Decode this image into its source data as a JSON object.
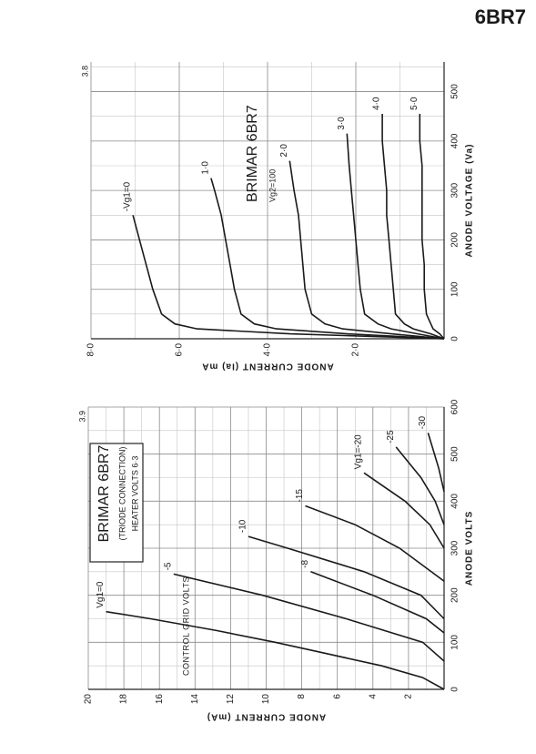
{
  "page_label": "6BR7",
  "chart_data": [
    {
      "type": "line",
      "title": "BRIMAR 6BR7",
      "subtitle": "Vg2=100",
      "page_number": "3.8",
      "x_label": "ANODE VOLTAGE (Va)",
      "y_label": "ANODE CURRENT (Ia) mA",
      "xlim": [
        0,
        560
      ],
      "ylim": [
        0,
        8
      ],
      "xticks": [
        0,
        100,
        200,
        300,
        400,
        500
      ],
      "yticks": [
        {
          "value": 2,
          "label": "2·0"
        },
        {
          "value": 4,
          "label": "4·0"
        },
        {
          "value": 6,
          "label": "6·0"
        },
        {
          "value": 8,
          "label": "8·0"
        }
      ],
      "grid": true,
      "color": "#1a1a1a",
      "series": [
        {
          "name": "-Vg1=0",
          "x": [
            0,
            10,
            20,
            30,
            50,
            100,
            150,
            200,
            250
          ],
          "values": [
            0,
            3.5,
            5.6,
            6.1,
            6.4,
            6.6,
            6.75,
            6.9,
            7.05
          ]
        },
        {
          "name": "1·0",
          "x": [
            0,
            10,
            20,
            30,
            50,
            100,
            150,
            200,
            250,
            300,
            325
          ],
          "values": [
            0,
            2.2,
            3.8,
            4.3,
            4.6,
            4.75,
            4.85,
            4.95,
            5.05,
            5.2,
            5.28
          ]
        },
        {
          "name": "2·0",
          "x": [
            0,
            10,
            20,
            30,
            50,
            100,
            150,
            200,
            250,
            300,
            360
          ],
          "values": [
            0,
            1.2,
            2.3,
            2.7,
            3.0,
            3.15,
            3.2,
            3.25,
            3.3,
            3.4,
            3.5
          ]
        },
        {
          "name": "3·0",
          "x": [
            0,
            10,
            20,
            30,
            50,
            100,
            150,
            200,
            250,
            300,
            350,
            415
          ],
          "values": [
            0,
            0.6,
            1.2,
            1.5,
            1.8,
            1.9,
            1.95,
            2.0,
            2.05,
            2.1,
            2.15,
            2.2
          ]
        },
        {
          "name": "4·0",
          "x": [
            0,
            10,
            20,
            30,
            50,
            100,
            150,
            200,
            250,
            300,
            350,
            400,
            455
          ],
          "values": [
            0,
            0.3,
            0.7,
            0.9,
            1.1,
            1.15,
            1.2,
            1.25,
            1.3,
            1.3,
            1.35,
            1.4,
            1.4
          ]
        },
        {
          "name": "5·0",
          "x": [
            0,
            10,
            20,
            30,
            50,
            100,
            150,
            200,
            250,
            300,
            350,
            400,
            455
          ],
          "values": [
            0,
            0.1,
            0.25,
            0.3,
            0.4,
            0.45,
            0.45,
            0.5,
            0.5,
            0.5,
            0.5,
            0.55,
            0.55
          ]
        }
      ]
    },
    {
      "type": "line",
      "title": "BRIMAR 6BR7",
      "subtitle": "(TRIODE CONNECTION)",
      "note": "HEATER VOLTS 6·3",
      "page_number": "3.9",
      "annotation": "CONTROL GRID VOLTS",
      "x_label": "ANODE VOLTS",
      "y_label": "ANODE CURRENT (mA)",
      "xlim": [
        0,
        600
      ],
      "ylim": [
        0,
        20
      ],
      "xticks": [
        0,
        100,
        200,
        300,
        400,
        500,
        600
      ],
      "yticks": [
        2,
        4,
        6,
        8,
        10,
        12,
        14,
        16,
        18,
        20
      ],
      "grid": true,
      "color": "#1a1a1a",
      "series": [
        {
          "name": "Vg1=0",
          "x": [
            0,
            25,
            50,
            75,
            100,
            125,
            150,
            165
          ],
          "values": [
            0,
            1.2,
            3.5,
            6.5,
            9.5,
            12.8,
            16.5,
            19
          ]
        },
        {
          "name": "-5",
          "x": [
            60,
            100,
            150,
            200,
            245
          ],
          "values": [
            0,
            1.2,
            5.5,
            10.2,
            15.2
          ]
        },
        {
          "name": "-8",
          "x": [
            120,
            150,
            200,
            250
          ],
          "values": [
            0,
            1,
            4,
            7.5
          ]
        },
        {
          "name": "-10",
          "x": [
            150,
            200,
            250,
            300,
            325
          ],
          "values": [
            0,
            1.3,
            4.5,
            8.8,
            11
          ]
        },
        {
          "name": "-15",
          "x": [
            230,
            300,
            350,
            390
          ],
          "values": [
            0,
            2.5,
            5,
            7.8
          ]
        },
        {
          "name": "Vg1=-20",
          "x": [
            300,
            350,
            400,
            460
          ],
          "values": [
            0,
            0.8,
            2.2,
            4.5
          ]
        },
        {
          "name": "-25",
          "x": [
            350,
            400,
            450,
            515
          ],
          "values": [
            0,
            0.5,
            1.3,
            2.7
          ]
        },
        {
          "name": "-30",
          "x": [
            420,
            470,
            545
          ],
          "values": [
            0,
            0.3,
            0.9
          ]
        }
      ]
    }
  ]
}
